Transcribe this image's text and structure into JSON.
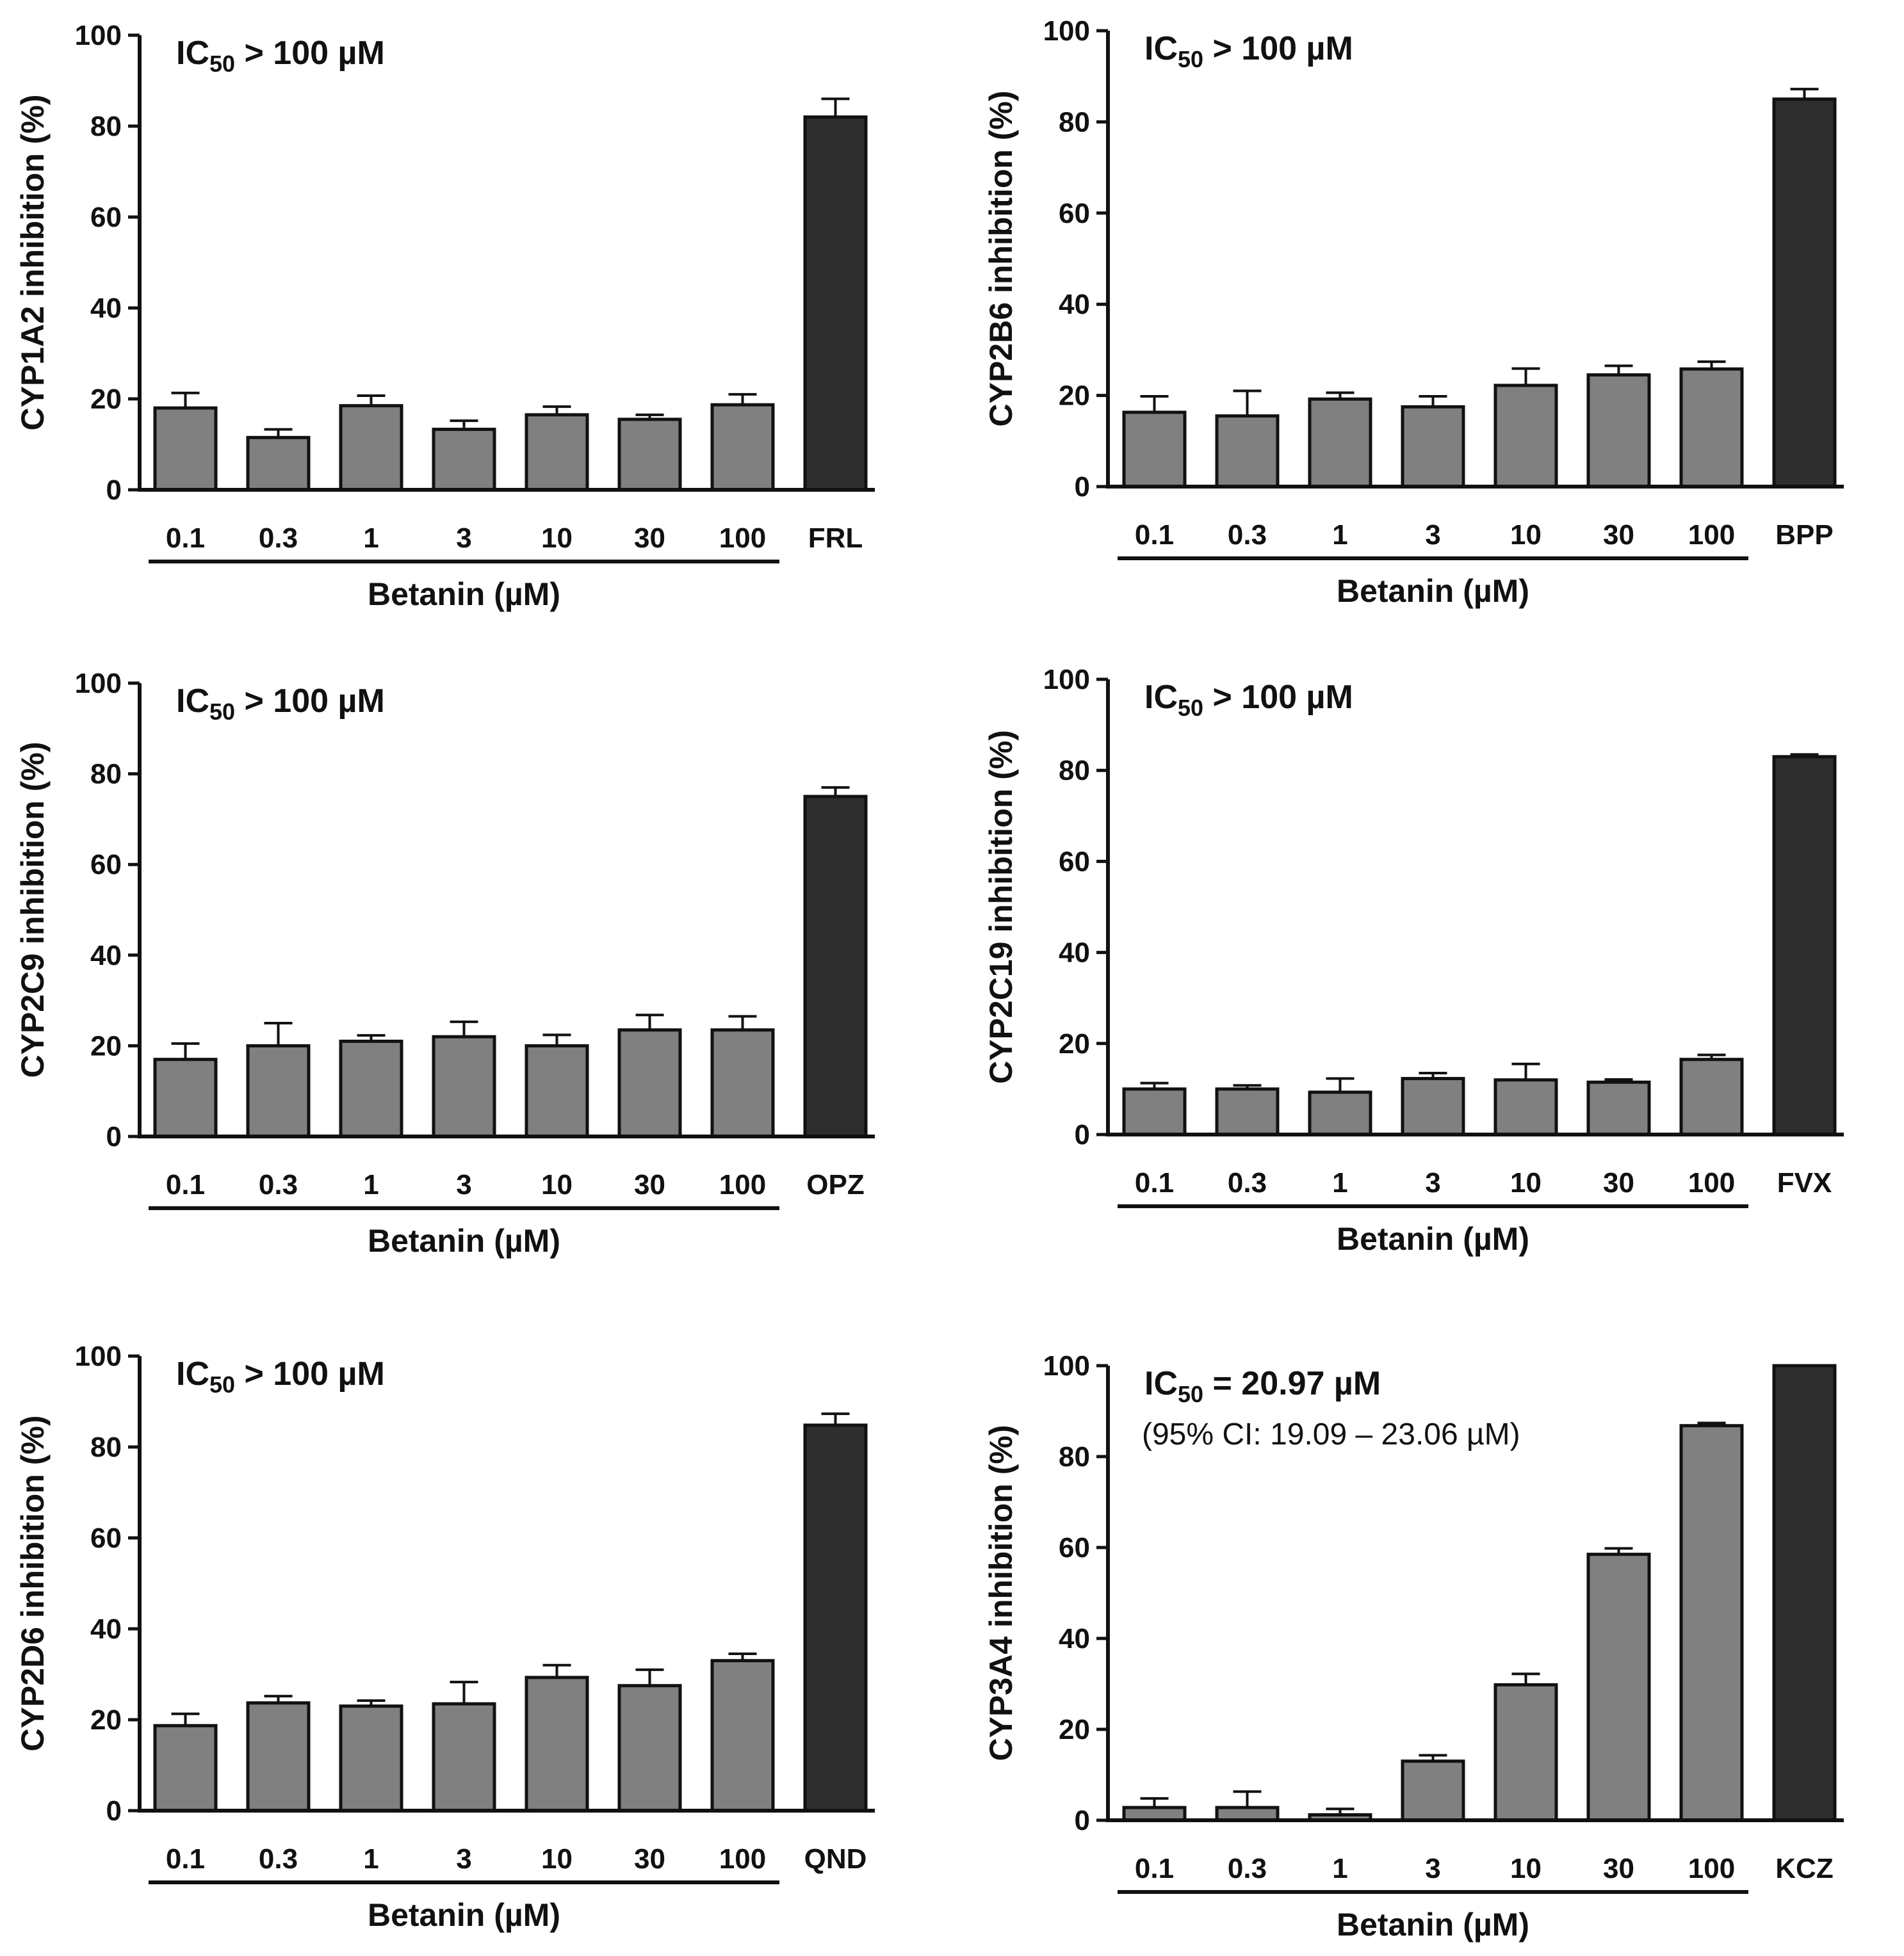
{
  "style": {
    "sample_color": "#808080",
    "control_color": "#2e2e2e",
    "axis_color": "#111111"
  },
  "chart_data": [
    {
      "type": "bar",
      "ylabel": "CYP1A2 inhibition (%)",
      "xlabel": "Betanin (µM)",
      "categories": [
        "0.1",
        "0.3",
        "1",
        "3",
        "10",
        "30",
        "100",
        "FRL"
      ],
      "values": [
        18,
        11.5,
        18.5,
        13.3,
        16.5,
        15.5,
        18.7,
        82
      ],
      "errors": [
        3.3,
        1.8,
        2.2,
        1.9,
        1.8,
        1.0,
        2.3,
        4.0
      ],
      "control_index": 7,
      "ylim": [
        0,
        100
      ],
      "yticks": [
        0,
        20,
        40,
        60,
        80,
        100
      ],
      "annotation": {
        "prefix": "IC",
        "sub": "50",
        "suffix": " > 100 µM",
        "ci": ""
      }
    },
    {
      "type": "bar",
      "ylabel": "CYP2B6 inhibition (%)",
      "xlabel": "Betanin (µM)",
      "categories": [
        "0.1",
        "0.3",
        "1",
        "3",
        "10",
        "30",
        "100",
        "BPP"
      ],
      "values": [
        16.3,
        15.5,
        19.2,
        17.5,
        22.2,
        24.5,
        25.8,
        85
      ],
      "errors": [
        3.5,
        5.5,
        1.4,
        2.3,
        3.7,
        2.0,
        1.6,
        2.2
      ],
      "control_index": 7,
      "ylim": [
        0,
        100
      ],
      "yticks": [
        0,
        20,
        40,
        60,
        80,
        100
      ],
      "annotation": {
        "prefix": "IC",
        "sub": "50",
        "suffix": " > 100 µM",
        "ci": ""
      }
    },
    {
      "type": "bar",
      "ylabel": "CYP2C9 inhibition (%)",
      "xlabel": "Betanin (µM)",
      "categories": [
        "0.1",
        "0.3",
        "1",
        "3",
        "10",
        "30",
        "100",
        "OPZ"
      ],
      "values": [
        17,
        20,
        21,
        22,
        20,
        23.5,
        23.5,
        75
      ],
      "errors": [
        3.5,
        5.0,
        1.3,
        3.3,
        2.4,
        3.3,
        3.0,
        2.0
      ],
      "control_index": 7,
      "ylim": [
        0,
        100
      ],
      "yticks": [
        0,
        20,
        40,
        60,
        80,
        100
      ],
      "annotation": {
        "prefix": "IC",
        "sub": "50",
        "suffix": " > 100 µM",
        "ci": ""
      }
    },
    {
      "type": "bar",
      "ylabel": "CYP2C19 inhibition (%)",
      "xlabel": "Betanin (µM)",
      "categories": [
        "0.1",
        "0.3",
        "1",
        "3",
        "10",
        "30",
        "100",
        "FVX"
      ],
      "values": [
        10,
        10,
        9.3,
        12.3,
        12,
        11.5,
        16.5,
        83
      ],
      "errors": [
        1.3,
        0.8,
        3.0,
        1.2,
        3.5,
        0.6,
        1.0,
        0.5
      ],
      "control_index": 7,
      "ylim": [
        0,
        100
      ],
      "yticks": [
        0,
        20,
        40,
        60,
        80,
        100
      ],
      "annotation": {
        "prefix": "IC",
        "sub": "50",
        "suffix": " > 100 µM",
        "ci": ""
      }
    },
    {
      "type": "bar",
      "ylabel": "CYP2D6 inhibition (%)",
      "xlabel": "Betanin (µM)",
      "categories": [
        "0.1",
        "0.3",
        "1",
        "3",
        "10",
        "30",
        "100",
        "QND"
      ],
      "values": [
        18.7,
        23.7,
        23,
        23.5,
        29.3,
        27.5,
        33,
        84.8
      ],
      "errors": [
        2.6,
        1.5,
        1.2,
        4.8,
        2.7,
        3.5,
        1.5,
        2.5
      ],
      "control_index": 7,
      "ylim": [
        0,
        100
      ],
      "yticks": [
        0,
        20,
        40,
        60,
        80,
        100
      ],
      "annotation": {
        "prefix": "IC",
        "sub": "50",
        "suffix": " > 100 µM",
        "ci": ""
      }
    },
    {
      "type": "bar",
      "ylabel": "CYP3A4 inhibition (%)",
      "xlabel": "Betanin (µM)",
      "categories": [
        "0.1",
        "0.3",
        "1",
        "3",
        "10",
        "30",
        "100",
        "KCZ"
      ],
      "values": [
        2.8,
        2.8,
        1.2,
        13,
        29.8,
        58.5,
        86.8,
        100
      ],
      "errors": [
        2.0,
        3.5,
        1.3,
        1.3,
        2.4,
        1.3,
        0.6,
        0
      ],
      "control_index": 7,
      "ylim": [
        0,
        100
      ],
      "yticks": [
        0,
        20,
        40,
        60,
        80,
        100
      ],
      "annotation": {
        "prefix": "IC",
        "sub": "50",
        "suffix": " = 20.97 µM",
        "ci": "(95% CI: 19.09 – 23.06 µM)"
      }
    }
  ]
}
